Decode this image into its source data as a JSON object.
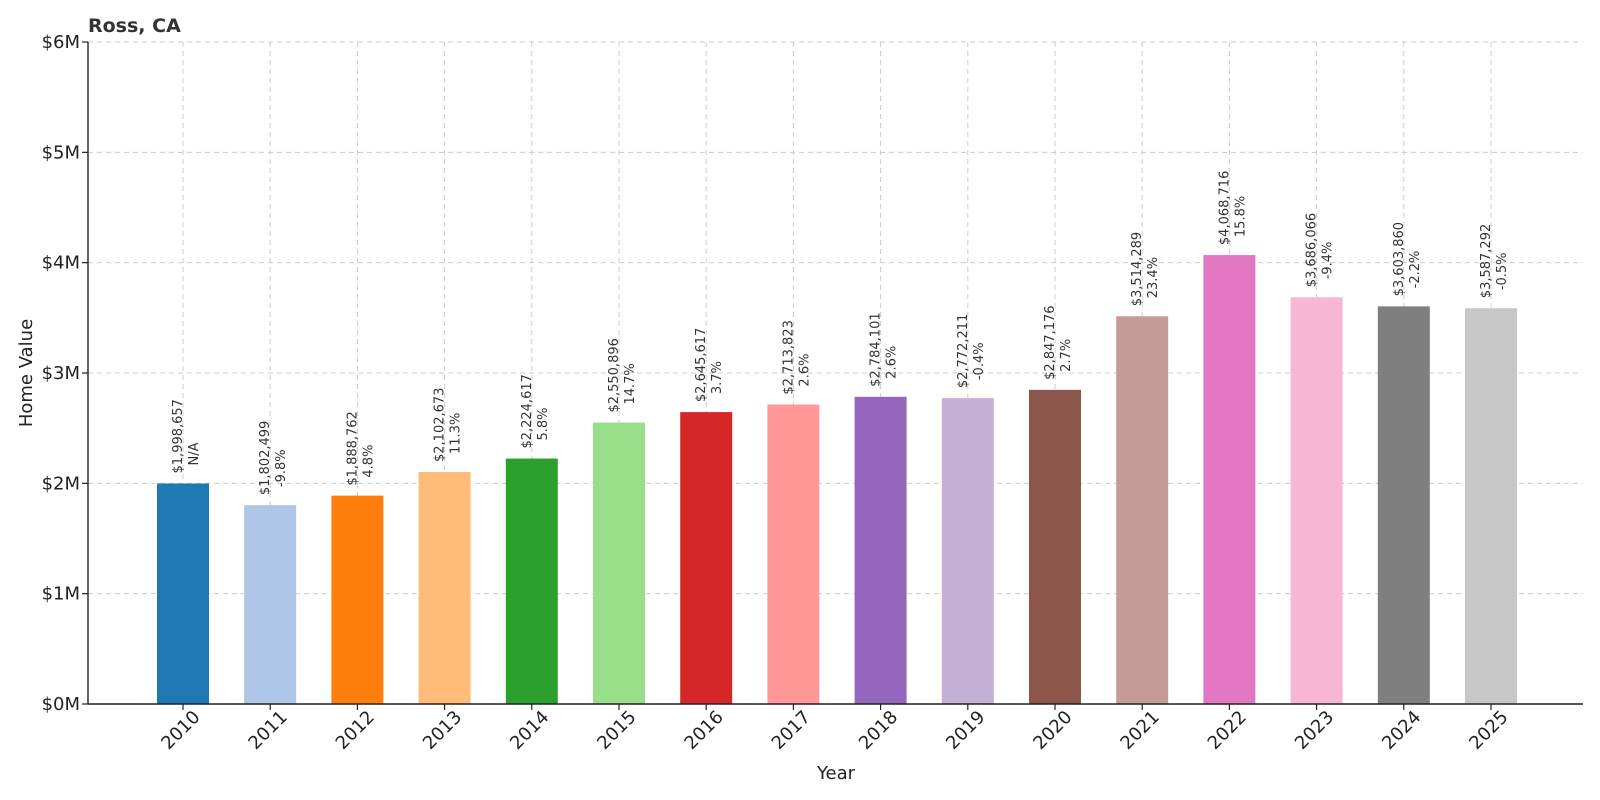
{
  "chart_data": {
    "type": "bar",
    "title": "Ross, CA",
    "xlabel": "Year",
    "ylabel": "Home Value",
    "ylim": [
      0,
      6000000
    ],
    "yticks": [
      {
        "value": 0,
        "label": "$0M"
      },
      {
        "value": 1000000,
        "label": "$1M"
      },
      {
        "value": 2000000,
        "label": "$2M"
      },
      {
        "value": 3000000,
        "label": "$3M"
      },
      {
        "value": 4000000,
        "label": "$4M"
      },
      {
        "value": 5000000,
        "label": "$5M"
      },
      {
        "value": 6000000,
        "label": "$6M"
      }
    ],
    "grid": true,
    "categories": [
      "2010",
      "2011",
      "2012",
      "2013",
      "2014",
      "2015",
      "2016",
      "2017",
      "2018",
      "2019",
      "2020",
      "2021",
      "2022",
      "2023",
      "2024",
      "2025"
    ],
    "values": [
      1998657,
      1802499,
      1888762,
      2102673,
      2224617,
      2550896,
      2645617,
      2713823,
      2784101,
      2772211,
      2847176,
      3514289,
      4068716,
      3686066,
      3603860,
      3587292
    ],
    "value_labels": [
      "$1,998,657",
      "$1,802,499",
      "$1,888,762",
      "$2,102,673",
      "$2,224,617",
      "$2,550,896",
      "$2,645,617",
      "$2,713,823",
      "$2,784,101",
      "$2,772,211",
      "$2,847,176",
      "$3,514,289",
      "$4,068,716",
      "$3,686,066",
      "$3,603,860",
      "$3,587,292"
    ],
    "change_labels": [
      "N/A",
      "-9.8%",
      "4.8%",
      "11.3%",
      "5.8%",
      "14.7%",
      "3.7%",
      "2.6%",
      "2.6%",
      "-0.4%",
      "2.7%",
      "23.4%",
      "15.8%",
      "-9.4%",
      "-2.2%",
      "-0.5%"
    ],
    "colors": [
      "#1f77b4",
      "#aec7e8",
      "#ff7f0e",
      "#ffbb78",
      "#2ca02c",
      "#98df8a",
      "#d62728",
      "#ff9896",
      "#9467bd",
      "#c5b0d5",
      "#8c564b",
      "#c49c94",
      "#e377c2",
      "#f7b6d2",
      "#7f7f7f",
      "#c7c7c7"
    ]
  }
}
